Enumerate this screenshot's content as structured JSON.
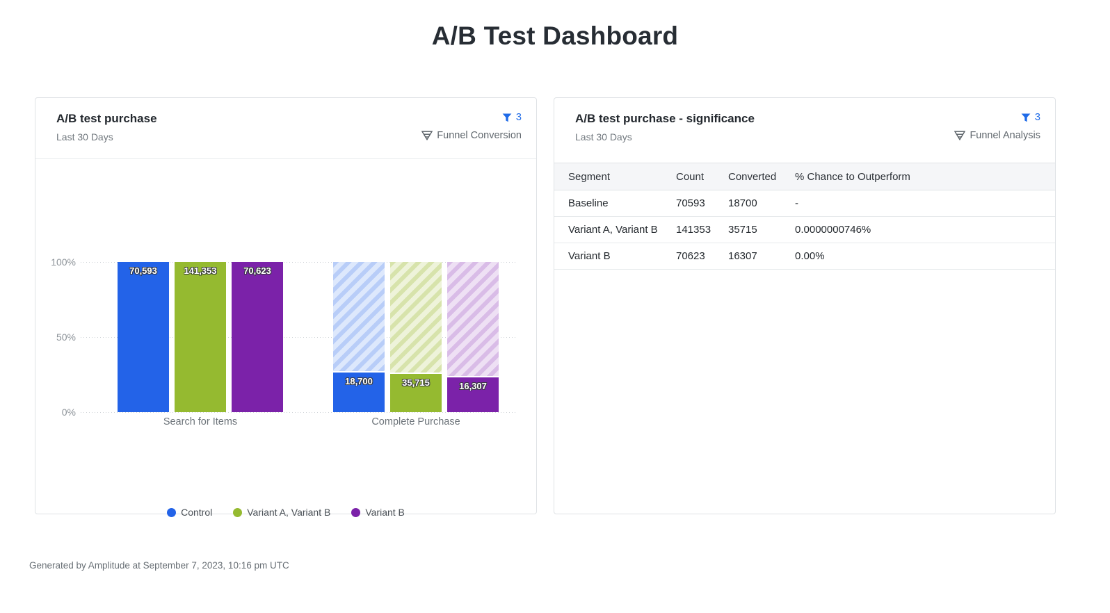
{
  "page": {
    "title": "A/B Test Dashboard",
    "footer": "Generated by Amplitude at September 7, 2023, 10:16 pm UTC"
  },
  "left_panel": {
    "title": "A/B test purchase",
    "subtitle": "Last 30 Days",
    "filter_count": "3",
    "chart_type_label": "Funnel Conversion"
  },
  "right_panel": {
    "title": "A/B test purchase - significance",
    "subtitle": "Last 30 Days",
    "filter_count": "3",
    "chart_type_label": "Funnel Analysis",
    "table": {
      "columns": [
        "Segment",
        "Count",
        "Converted",
        "% Chance to Outperform"
      ],
      "rows": [
        [
          "Baseline",
          "70593",
          "18700",
          "-"
        ],
        [
          "Variant A, Variant B",
          "141353",
          "35715",
          "0.0000000746%"
        ],
        [
          "Variant B",
          "70623",
          "16307",
          "0.00%"
        ]
      ]
    }
  },
  "chart_data": {
    "type": "bar",
    "subtype": "grouped-funnel-conversion",
    "title": "A/B test purchase",
    "categories": [
      "Search for Items",
      "Complete Purchase"
    ],
    "series": [
      {
        "name": "Control",
        "color": "#2363e8",
        "hatch_base": "#dde8fc",
        "hatch_stripe": "#b8cdf8",
        "values": [
          70593,
          18700
        ],
        "value_labels": [
          "70,593",
          "18,700"
        ]
      },
      {
        "name": "Variant A, Variant B",
        "color": "#95ba30",
        "hatch_base": "#eef3da",
        "hatch_stripe": "#d7e3ab",
        "values": [
          141353,
          35715
        ],
        "value_labels": [
          "141,353",
          "35,715"
        ]
      },
      {
        "name": "Variant B",
        "color": "#7b22a9",
        "hatch_base": "#eee0f4",
        "hatch_stripe": "#d9bce7",
        "values": [
          70623,
          16307
        ],
        "value_labels": [
          "70,623",
          "16,307"
        ]
      }
    ],
    "y_ticks": [
      "100%",
      "50%",
      "0%"
    ],
    "ylim": [
      0,
      100
    ],
    "grid": "horizontal-dotted",
    "legend_position": "bottom",
    "note": "Step 1 bars drawn at 100%; step 2 drawn as converted % of step 1 with hatched remainder up to 100%"
  },
  "colors": {
    "accent_blue": "#1f6be8",
    "panel_border": "#dfe2e5",
    "table_header_bg": "#f5f6f8",
    "grid_dot": "#cfd3d7"
  }
}
